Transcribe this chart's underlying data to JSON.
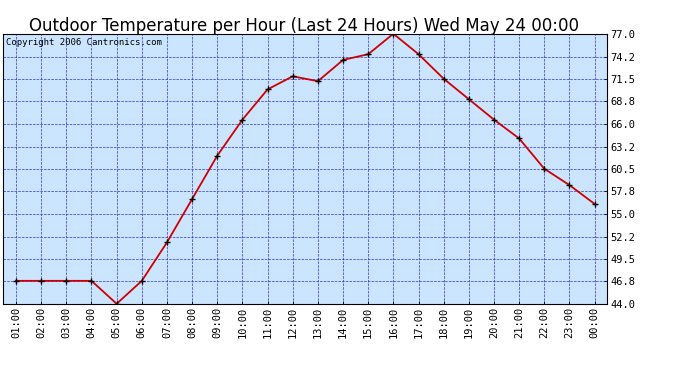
{
  "title": "Outdoor Temperature per Hour (Last 24 Hours) Wed May 24 00:00",
  "copyright": "Copyright 2006 Cantronics.com",
  "x_labels": [
    "01:00",
    "02:00",
    "03:00",
    "04:00",
    "05:00",
    "06:00",
    "07:00",
    "08:00",
    "09:00",
    "10:00",
    "11:00",
    "12:00",
    "13:00",
    "14:00",
    "15:00",
    "16:00",
    "17:00",
    "18:00",
    "19:00",
    "20:00",
    "21:00",
    "22:00",
    "23:00",
    "00:00"
  ],
  "y_values": [
    46.8,
    46.8,
    46.8,
    46.8,
    44.0,
    46.8,
    51.5,
    56.8,
    62.1,
    66.5,
    70.2,
    71.8,
    71.2,
    73.8,
    74.5,
    77.0,
    74.5,
    71.5,
    69.0,
    66.5,
    64.2,
    60.5,
    58.5,
    56.2
  ],
  "line_color": "#cc0000",
  "bg_color": "#cce5ff",
  "outer_bg_color": "#ffffff",
  "grid_color": "#3333cc",
  "y_ticks": [
    44.0,
    46.8,
    49.5,
    52.2,
    55.0,
    57.8,
    60.5,
    63.2,
    66.0,
    68.8,
    71.5,
    74.2,
    77.0
  ],
  "y_min": 44.0,
  "y_max": 77.0,
  "title_fontsize": 12,
  "copyright_fontsize": 6.5,
  "tick_fontsize": 7.5
}
